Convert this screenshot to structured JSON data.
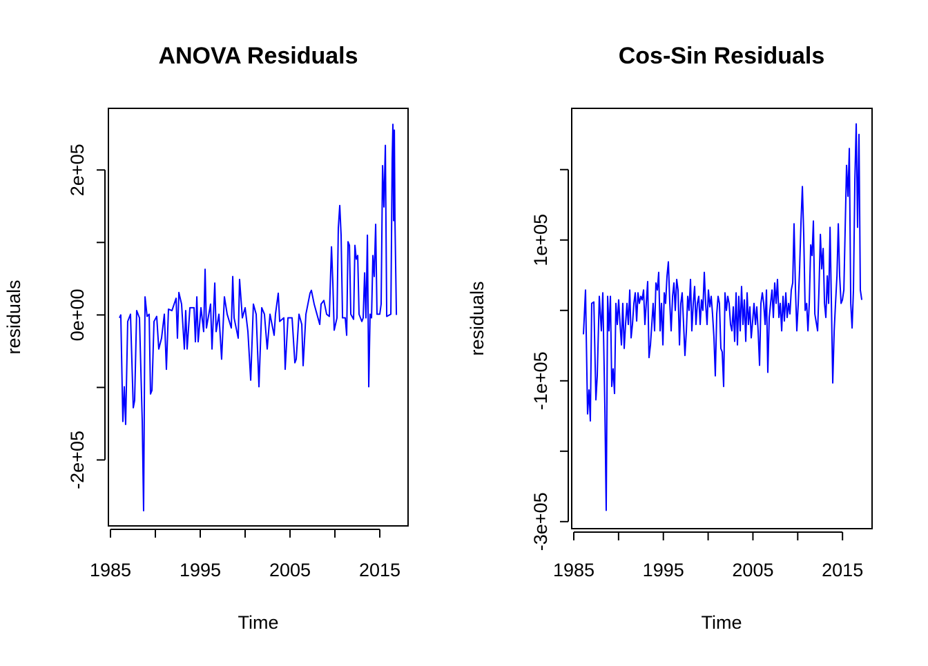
{
  "chart_data": [
    {
      "type": "line",
      "title": "ANOVA Residuals",
      "xlabel": "Time",
      "ylabel": "residuals",
      "color": "#0000ff",
      "xlim": [
        1984.77,
        2018.15
      ],
      "ylim": [
        -291000,
        285000
      ],
      "xticks": [
        1985,
        {
          "value": 1990,
          "label": null
        },
        1995,
        {
          "value": 2000,
          "label": null
        },
        2005,
        {
          "value": 2010,
          "label": null
        },
        2015
      ],
      "yticks": [
        {
          "value": -200000,
          "label": "-2e+05"
        },
        {
          "value": -100000,
          "label": null
        },
        {
          "value": 0,
          "label": "0e+00"
        },
        {
          "value": 100000,
          "label": null
        },
        {
          "value": 200000,
          "label": "2e+05"
        }
      ],
      "x": [
        1986.0,
        1986.15,
        1986.38,
        1986.54,
        1986.69,
        1986.92,
        1987.23,
        1987.54,
        1987.69,
        1987.92,
        1988.23,
        1988.54,
        1988.69,
        1988.85,
        1989.08,
        1989.31,
        1989.46,
        1989.62,
        1989.85,
        1990.15,
        1990.38,
        1990.69,
        1991.0,
        1991.23,
        1991.46,
        1991.85,
        1992.31,
        1992.46,
        1992.62,
        1992.92,
        1993.23,
        1993.38,
        1993.54,
        1993.85,
        1994.31,
        1994.46,
        1994.62,
        1994.77,
        1995.08,
        1995.38,
        1995.54,
        1995.69,
        1996.15,
        1996.31,
        1996.62,
        1996.77,
        1997.08,
        1997.38,
        1997.69,
        1998.0,
        1998.46,
        1998.62,
        1998.77,
        1999.23,
        1999.38,
        1999.69,
        2000.0,
        2000.31,
        2000.62,
        2000.92,
        2001.23,
        2001.54,
        2001.85,
        2002.15,
        2002.46,
        2002.77,
        2003.23,
        2003.38,
        2003.69,
        2003.85,
        2004.31,
        2004.46,
        2004.77,
        2005.23,
        2005.54,
        2005.69,
        2006.0,
        2006.31,
        2006.46,
        2006.77,
        2007.23,
        2007.38,
        2007.69,
        2008.0,
        2008.31,
        2008.46,
        2008.77,
        2009.08,
        2009.38,
        2009.54,
        2009.62,
        2009.77,
        2009.92,
        2010.23,
        2010.38,
        2010.54,
        2010.69,
        2010.85,
        2011.15,
        2011.31,
        2011.46,
        2011.62,
        2011.77,
        2012.08,
        2012.23,
        2012.38,
        2012.54,
        2012.69,
        2013.0,
        2013.15,
        2013.31,
        2013.46,
        2013.62,
        2013.77,
        2013.92,
        2014.08,
        2014.23,
        2014.38,
        2014.54,
        2014.69,
        2015.0,
        2015.15,
        2015.31,
        2015.46,
        2015.62,
        2015.77,
        2016.23,
        2016.38,
        2016.46,
        2016.54,
        2016.62,
        2016.69,
        2016.85
      ],
      "values": [
        -4000,
        0,
        -147000,
        -99000,
        -151000,
        -9000,
        1000,
        -128000,
        -118000,
        6000,
        -4000,
        -147000,
        -270000,
        25000,
        -2000,
        1000,
        -109000,
        -104000,
        -9000,
        -2000,
        -47000,
        -32000,
        1000,
        -75000,
        8000,
        6000,
        23000,
        -32000,
        31000,
        15000,
        -47000,
        6000,
        -47000,
        10000,
        10000,
        -37000,
        25000,
        -37000,
        10000,
        -23000,
        63000,
        -18000,
        15000,
        -47000,
        44000,
        -23000,
        1000,
        -61000,
        25000,
        1000,
        -18000,
        53000,
        -4000,
        -32000,
        49000,
        -4000,
        10000,
        -23000,
        -90000,
        15000,
        1000,
        -99000,
        10000,
        1000,
        -47000,
        1000,
        -28000,
        1000,
        30000,
        -9000,
        -4000,
        -75000,
        -4000,
        -4000,
        -66000,
        -61000,
        1000,
        -13000,
        -70000,
        1000,
        30000,
        34000,
        15000,
        1000,
        -13000,
        15000,
        20000,
        1000,
        -2000,
        63000,
        94000,
        44000,
        -21000,
        -4000,
        120000,
        151000,
        110000,
        -4000,
        -4000,
        -28000,
        101000,
        96000,
        1000,
        -6000,
        96000,
        77000,
        82000,
        1000,
        -9000,
        -4000,
        58000,
        -4000,
        110000,
        -99000,
        1000,
        -4000,
        82000,
        53000,
        125000,
        1000,
        1000,
        15000,
        206000,
        149000,
        234000,
        -2000,
        1000,
        215000,
        263000,
        130000,
        255000,
        130000,
        0
      ]
    },
    {
      "type": "line",
      "title": "Cos-Sin Residuals",
      "xlabel": "Time",
      "ylabel": "residuals",
      "color": "#0000ff",
      "xlim": [
        1984.77,
        2018.3
      ],
      "ylim": [
        -310000,
        287000
      ],
      "xticks": [
        1985,
        {
          "value": 1990,
          "label": null
        },
        1995,
        {
          "value": 2000,
          "label": null
        },
        2005,
        {
          "value": 2010,
          "label": null
        },
        2015
      ],
      "yticks": [
        {
          "value": -300000,
          "label": "-3e+05"
        },
        {
          "value": -200000,
          "label": null
        },
        {
          "value": -100000,
          "label": "-1e+05"
        },
        {
          "value": 0,
          "label": null
        },
        {
          "value": 100000,
          "label": "1e+05"
        },
        {
          "value": 200000,
          "label": null
        }
      ],
      "x": [
        1986.08,
        1986.31,
        1986.54,
        1986.7,
        1986.85,
        1987.0,
        1987.24,
        1987.47,
        1987.62,
        1987.85,
        1988.08,
        1988.24,
        1988.47,
        1988.62,
        1988.78,
        1988.93,
        1989.09,
        1989.24,
        1989.39,
        1989.55,
        1989.7,
        1989.86,
        1990.01,
        1990.17,
        1990.32,
        1990.47,
        1990.63,
        1990.78,
        1990.94,
        1991.09,
        1991.25,
        1991.4,
        1991.55,
        1991.71,
        1991.86,
        1992.02,
        1992.17,
        1992.32,
        1992.48,
        1992.63,
        1992.79,
        1992.94,
        1993.09,
        1993.25,
        1993.4,
        1993.56,
        1993.71,
        1993.86,
        1994.02,
        1994.17,
        1994.33,
        1994.48,
        1994.64,
        1994.79,
        1994.95,
        1995.1,
        1995.25,
        1995.41,
        1995.56,
        1995.72,
        1995.87,
        1996.03,
        1996.18,
        1996.33,
        1996.49,
        1996.64,
        1996.8,
        1996.95,
        1997.1,
        1997.26,
        1997.41,
        1997.57,
        1997.72,
        1997.87,
        1998.03,
        1998.18,
        1998.34,
        1998.49,
        1998.64,
        1998.8,
        1998.95,
        1999.11,
        1999.26,
        1999.41,
        1999.57,
        1999.72,
        1999.88,
        2000.03,
        2000.19,
        2000.34,
        2000.49,
        2000.65,
        2000.8,
        2000.96,
        2001.11,
        2001.26,
        2001.42,
        2001.57,
        2001.73,
        2001.88,
        2002.04,
        2002.19,
        2002.34,
        2002.5,
        2002.65,
        2002.81,
        2002.96,
        2003.12,
        2003.27,
        2003.42,
        2003.58,
        2003.73,
        2003.89,
        2004.04,
        2004.2,
        2004.35,
        2004.5,
        2004.66,
        2004.81,
        2004.97,
        2005.12,
        2005.28,
        2005.43,
        2005.58,
        2005.74,
        2005.89,
        2006.05,
        2006.2,
        2006.36,
        2006.51,
        2006.66,
        2006.82,
        2006.97,
        2007.13,
        2007.28,
        2007.43,
        2007.59,
        2007.74,
        2007.9,
        2008.05,
        2008.21,
        2008.36,
        2008.51,
        2008.67,
        2008.82,
        2008.98,
        2009.13,
        2009.28,
        2009.44,
        2009.59,
        2009.75,
        2009.9,
        2010.06,
        2010.21,
        2010.37,
        2010.52,
        2010.67,
        2010.83,
        2011.0,
        2011.14,
        2011.29,
        2011.45,
        2011.6,
        2011.75,
        2011.91,
        2012.22,
        2012.37,
        2012.53,
        2012.68,
        2012.84,
        2012.99,
        2013.14,
        2013.3,
        2013.45,
        2013.61,
        2013.76,
        2013.91,
        2014.07,
        2014.22,
        2014.38,
        2014.53,
        2014.68,
        2014.84,
        2014.99,
        2015.15,
        2015.3,
        2015.45,
        2015.61,
        2015.76,
        2015.92,
        2016.07,
        2016.22,
        2016.38,
        2016.53,
        2016.68,
        2016.84,
        2016.99,
        2017.15
      ],
      "values": [
        -34000,
        29000,
        -147000,
        -113000,
        -157000,
        10000,
        12000,
        -127000,
        -93000,
        20000,
        -29000,
        25000,
        -137000,
        -284000,
        20000,
        -29000,
        20000,
        -108000,
        -83000,
        -118000,
        10000,
        -20000,
        15000,
        -20000,
        -49000,
        10000,
        -54000,
        -20000,
        10000,
        -20000,
        29000,
        -39000,
        -20000,
        10000,
        25000,
        -15000,
        25000,
        10000,
        20000,
        15000,
        29000,
        -20000,
        10000,
        41000,
        -67000,
        -49000,
        -20000,
        10000,
        -29000,
        39000,
        29000,
        54000,
        -29000,
        10000,
        -49000,
        25000,
        10000,
        49000,
        69000,
        10000,
        -29000,
        20000,
        39000,
        0,
        44000,
        29000,
        -49000,
        10000,
        25000,
        -20000,
        -64000,
        -29000,
        20000,
        0,
        44000,
        -29000,
        10000,
        34000,
        -20000,
        10000,
        20000,
        -20000,
        15000,
        0,
        54000,
        10000,
        -20000,
        29000,
        5000,
        20000,
        -5000,
        -39000,
        -93000,
        -5000,
        20000,
        10000,
        -54000,
        -59000,
        -108000,
        25000,
        0,
        20000,
        10000,
        -20000,
        -29000,
        5000,
        -44000,
        25000,
        -49000,
        20000,
        -29000,
        34000,
        -20000,
        15000,
        -44000,
        25000,
        -20000,
        5000,
        -39000,
        -15000,
        10000,
        -20000,
        5000,
        -29000,
        -78000,
        10000,
        25000,
        10000,
        -20000,
        29000,
        -88000,
        -10000,
        10000,
        29000,
        -10000,
        39000,
        10000,
        44000,
        -10000,
        10000,
        -29000,
        20000,
        -15000,
        25000,
        -10000,
        10000,
        -5000,
        29000,
        39000,
        123000,
        29000,
        -29000,
        10000,
        59000,
        127000,
        176000,
        108000,
        0,
        10000,
        -29000,
        10000,
        93000,
        78000,
        127000,
        -5000,
        -29000,
        29000,
        108000,
        59000,
        88000,
        10000,
        -10000,
        49000,
        10000,
        118000,
        10000,
        -103000,
        -29000,
        10000,
        49000,
        123000,
        49000,
        10000,
        15000,
        29000,
        118000,
        206000,
        162000,
        230000,
        10000,
        -25000,
        29000,
        186000,
        265000,
        118000,
        250000,
        29000,
        15000
      ]
    }
  ]
}
